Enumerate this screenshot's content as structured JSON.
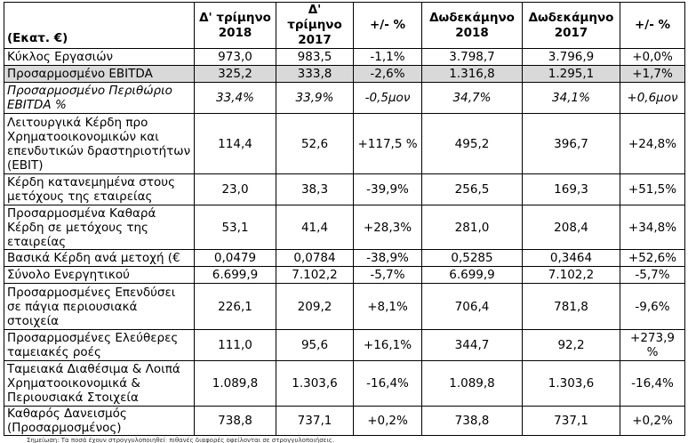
{
  "table": {
    "headers": [
      "(Εκατ. €)",
      "Δ' τρίμηνο 2018",
      "Δ' τρίμηνο 2017",
      "+/- %",
      "Δωδεκάμηνο 2018",
      "Δωδεκάμηνο 2017",
      "+/- %"
    ],
    "rows": [
      {
        "label": "Κύκλος Εργασιών",
        "values": [
          "973,0",
          "983,5",
          "-1,1%",
          "3.798,7",
          "3.796,9",
          "+0,0%"
        ]
      },
      {
        "label": "Προσαρμοσμένο EBITDA",
        "values": [
          "325,2",
          "333,8",
          "-2,6%",
          "1.316,8",
          "1.295,1",
          "+1,7%"
        ]
      },
      {
        "label": "Προσαρμοσμένο Περιθώριο EBITDA %",
        "values": [
          "33,4%",
          "33,9%",
          "-0,5μον",
          "34,7%",
          "34,1%",
          "+0,6μον"
        ]
      },
      {
        "label": "Λειτουργικά Κέρδη προ Χρηματοοικονομικών και επενδυτικών δραστηριοτήτων (EBIT)",
        "values": [
          "114,4",
          "52,6",
          "+117,5 %",
          "495,2",
          "396,7",
          "+24,8%"
        ]
      },
      {
        "label": "Κέρδη κατανεμημένα στους μετόχους της εταιρείας",
        "values": [
          "23,0",
          "38,3",
          "-39,9%",
          "256,5",
          "169,3",
          "+51,5%"
        ]
      },
      {
        "label": "Προσαρμοσμένα Καθαρά Κέρδη σε μετόχους της εταιρείας",
        "values": [
          "53,1",
          "41,4",
          "+28,3%",
          "281,0",
          "208,4",
          "+34,8%"
        ]
      },
      {
        "label": "Βασικά Κέρδη ανά μετοχή (€",
        "values": [
          "0,0479",
          "0,0784",
          "-38,9%",
          "0,5285",
          "0,3464",
          "+52,6%"
        ]
      },
      {
        "label": "Σύνολο Ενεργητικού",
        "values": [
          "6.699,9",
          "7.102,2",
          "-5,7%",
          "6.699,9",
          "7.102,2",
          "-5,7%"
        ]
      },
      {
        "label": "Προσαρμοσμένες Επενδύσει σε πάγια περιουσιακά στοιχεία",
        "values": [
          "226,1",
          "209,2",
          "+8,1%",
          "706,4",
          "781,8",
          "-9,6%"
        ]
      },
      {
        "label": "Προσαρμοσμένες Ελεύθερες ταμειακές ροές",
        "values": [
          "111,0",
          "95,6",
          "+16,1%",
          "344,7",
          "92,2",
          "+273,9 %"
        ]
      },
      {
        "label": "Ταμειακά Διαθέσιμα & Λοιπά Χρηματοοικονομικά & Περιουσιακά Στοιχεία",
        "values": [
          "1.089,8",
          "1.303,6",
          "-16,4%",
          "1.089,8",
          "1.303,6",
          "-16,4%"
        ]
      },
      {
        "label": "Καθαρός Δανεισμός (Προσαρμοσμένος)",
        "values": [
          "738,8",
          "737,1",
          "+0,2%",
          "738,8",
          "737,1",
          "+0,2%"
        ]
      }
    ]
  },
  "footnote": "Σημείωση: Τα ποσά έχουν στρογγυλοποιηθεί· πιθανές διαφορές οφείλονται σε στρογγυλοποιήσεις."
}
